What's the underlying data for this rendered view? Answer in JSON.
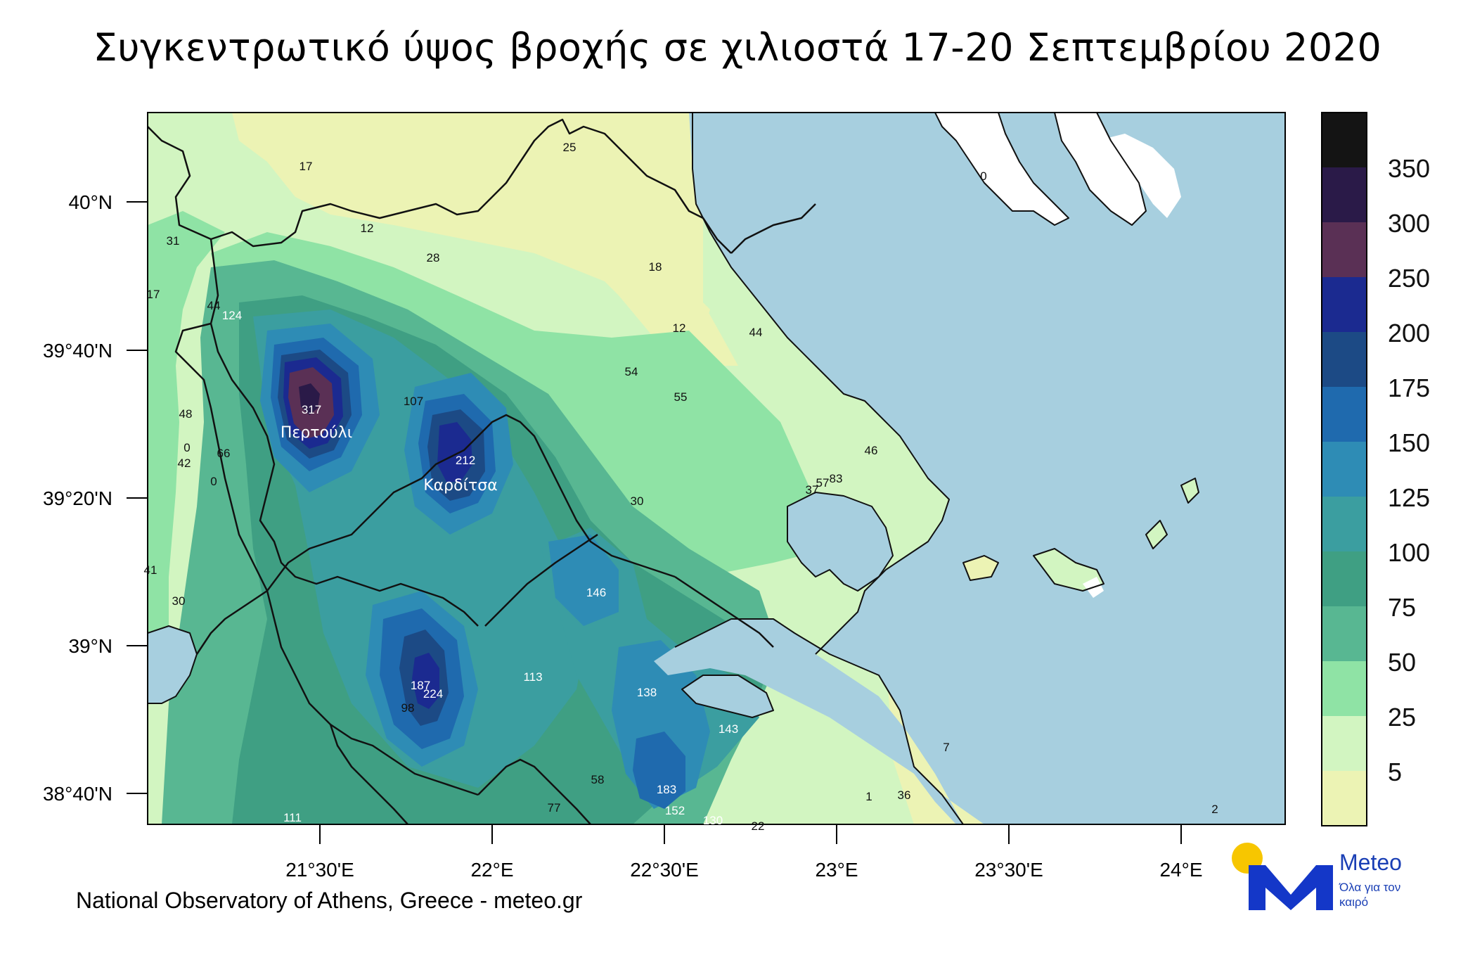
{
  "title": "Συγκεντρωτικό ύψος βροχής σε χιλιοστά 17-20 Σεπτεμβρίου 2020",
  "footer": "National Observatory of Athens, Greece - meteo.gr",
  "logo": {
    "brand": "Meteo",
    "tagline": "Όλα για τον καιρό",
    "colors": {
      "sun": "#f7c600",
      "mark": "#1437c8"
    }
  },
  "map": {
    "lat_labels": [
      "40°N",
      "39°40'N",
      "39°20'N",
      "39°N",
      "38°40'N"
    ],
    "lon_labels": [
      "21°30'E",
      "22°E",
      "22°30'E",
      "23°E",
      "23°30'E",
      "24°E"
    ],
    "colors": {
      "sea": "#a7cfdf",
      "land_base": "#d2f5c1"
    }
  },
  "legend": {
    "labels": [
      "350",
      "300",
      "250",
      "200",
      "175",
      "150",
      "125",
      "100",
      "75",
      "50",
      "25",
      "5"
    ],
    "colors": [
      "#141414",
      "#2a1a48",
      "#5a3055",
      "#1b2a90",
      "#1c4a85",
      "#1f6aae",
      "#2e8cb5",
      "#3b9ea0",
      "#3f9f83",
      "#58b792",
      "#8fe3a5",
      "#d2f5c1",
      "#ecf3b4",
      "#ffffff"
    ]
  },
  "towns": [
    "Περτούλι",
    "Καρδίτσα"
  ],
  "station_values": [
    "17",
    "25",
    "12",
    "28",
    "31",
    "17",
    "44",
    "124",
    "18",
    "12",
    "44",
    "54",
    "55",
    "107",
    "317",
    "48",
    "0",
    "42",
    "66",
    "0",
    "212",
    "46",
    "30",
    "83",
    "57",
    "37",
    "41",
    "30",
    "146",
    "0",
    "187",
    "224",
    "98",
    "113",
    "138",
    "143",
    "58",
    "77",
    "183",
    "152",
    "130",
    "22",
    "111",
    "7",
    "2",
    "36",
    "1"
  ]
}
